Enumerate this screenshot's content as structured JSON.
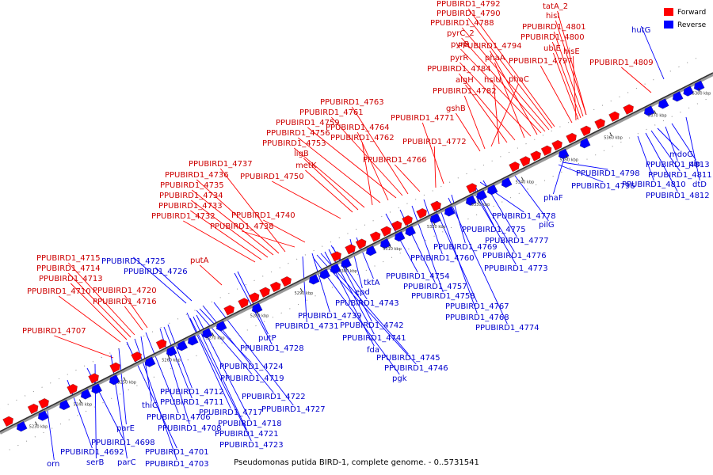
{
  "caption": "Pseudomonas putida BIRD-1, complete genome. - 0..5731541",
  "colors": {
    "forward": "#ff0000",
    "reverse": "#0000ff",
    "forward_label": "#cc0000",
    "reverse_label": "#0000cc"
  },
  "legend": {
    "forward": "Forward",
    "reverse": "Reverse"
  },
  "axis_ticks": [
    "5230 kbp",
    "5240 kbp",
    "5250 kbp",
    "5260 kbp",
    "5270 kbp",
    "5280 kbp",
    "5290 kbp",
    "5300 kbp",
    "5310 kbp",
    "5320 kbp",
    "5330 kbp",
    "5340 kbp",
    "5350 kbp",
    "5360 kbp",
    "5370 kbp",
    "5380 kbp"
  ],
  "forward_labels": [
    "tatA_2",
    "hisI",
    "PPUBIRD1_4801",
    "PPUBIRD1_4800",
    "ubiE",
    "hisE",
    "PPUBIRD1_4797",
    "PPUBIRD1_4809",
    "PPUBIRD1_4792",
    "PPUBIRD1_4790",
    "PPUBIRD1_4788",
    "pyrC_2",
    "pyrB",
    "PPUBIRD1_4794",
    "pyrR",
    "phaA",
    "PPUBIRD1_4784",
    "algH",
    "hslU",
    "phaC",
    "PPUBIRD1_4782",
    "gshB",
    "PPUBIRD1_4763",
    "PPUBIRD1_4761",
    "PPUBIRD1_4771",
    "PPUBIRD1_4759",
    "PPUBIRD1_4764",
    "PPUBIRD1_4756",
    "PPUBIRD1_4762",
    "PPUBIRD1_4772",
    "PPUBIRD1_4753",
    "ligB",
    "metK",
    "PPUBIRD1_4766",
    "PPUBIRD1_4750",
    "PPUBIRD1_4737",
    "PPUBIRD1_4736",
    "PPUBIRD1_4735",
    "PPUBIRD1_4734",
    "PPUBIRD1_4733",
    "PPUBIRD1_4732",
    "PPUBIRD1_4740",
    "PPUBIRD1_4738",
    "PPUBIRD1_4715",
    "PPUBIRD1_4714",
    "PPUBIRD1_4713",
    "putA",
    "PPUBIRD1_4710",
    "PPUBIRD1_4720",
    "PPUBIRD1_4716",
    "PPUBIRD1_4707"
  ],
  "reverse_labels": [
    "hutG",
    "mdoG",
    "PPUBIRD1_4811",
    "pip",
    "PPUBIRD1_4813",
    "PPUBIRD1_4810",
    "dtD",
    "PPUBIRD1_4812",
    "PPUBIRD1_4798",
    "PPUBIRD1_4796",
    "phaF",
    "PPUBIRD1_4778",
    "pilG",
    "PPUBIRD1_4775",
    "PPUBIRD1_4777",
    "PPUBIRD1_4769",
    "PPUBIRD1_4776",
    "PPUBIRD1_4760",
    "PPUBIRD1_4773",
    "PPUBIRD1_4754",
    "PPUBIRD1_4757",
    "PPUBIRD1_4758",
    "PPUBIRD1_4767",
    "PPUBIRD1_4768",
    "PPUBIRD1_4774",
    "PPUBIRD1_4725",
    "PPUBIRD1_4726",
    "tktA",
    "epd",
    "PPUBIRD1_4743",
    "PPUBIRD1_4739",
    "PPUBIRD1_4731",
    "PPUBIRD1_4742",
    "PPUBIRD1_4741",
    "fda",
    "PPUBIRD1_4745",
    "PPUBIRD1_4746",
    "pgk",
    "putP",
    "PPUBIRD1_4728",
    "PPUBIRD1_4724",
    "PPUBIRD1_4719",
    "PPUBIRD1_4712",
    "PPUBIRD1_4711",
    "thiC",
    "PPUBIRD1_4722",
    "PPUBIRD1_4717",
    "PPUBIRD1_4727",
    "PPUBIRD1_4706",
    "PPUBIRD1_4718",
    "PPUBIRD1_4708",
    "parE",
    "PPUBIRD1_4721",
    "PPUBIRD1_4723",
    "PPUBIRD1_4698",
    "PPUBIRD1_4692",
    "PPUBIRD1_4701",
    "serB",
    "parC",
    "PPUBIRD1_4703",
    "orn"
  ]
}
